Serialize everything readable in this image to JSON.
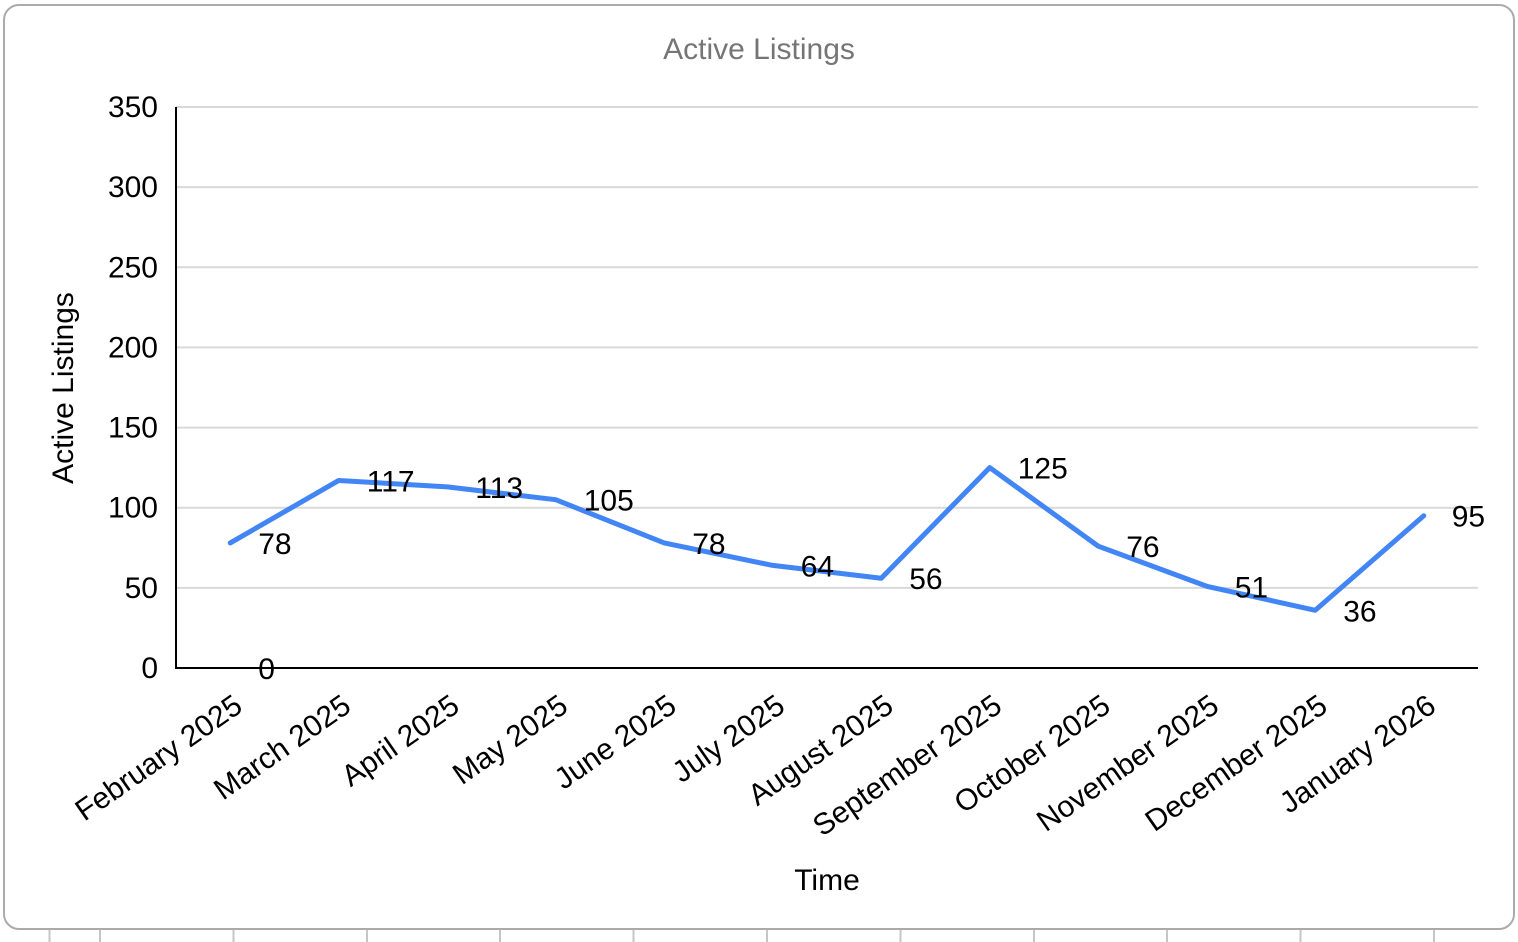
{
  "chart": {
    "title": "Active Listings",
    "x_axis_title": "Time",
    "y_axis_title": "Active Listings"
  },
  "chart_data": {
    "type": "line",
    "title": "Active Listings",
    "xlabel": "Time",
    "ylabel": "Active Listings",
    "categories": [
      "February 2025",
      "March 2025",
      "April 2025",
      "May 2025",
      "June 2025",
      "July 2025",
      "August 2025",
      "September 2025",
      "October 2025",
      "November 2025",
      "December 2025",
      "January 2026"
    ],
    "series": [
      {
        "name": "Active Listings",
        "color": "#4285f4",
        "values": [
          78,
          117,
          113,
          105,
          78,
          64,
          56,
          125,
          76,
          51,
          36,
          95
        ]
      }
    ],
    "annotations": [
      {
        "text": "0",
        "category": "February 2025",
        "category_index": 0,
        "value": 0
      }
    ],
    "ylim": [
      0,
      350
    ],
    "y_ticks": [
      0,
      50,
      100,
      150,
      200,
      250,
      300,
      350
    ],
    "grid": true,
    "legend": "none",
    "data_labels": true
  }
}
